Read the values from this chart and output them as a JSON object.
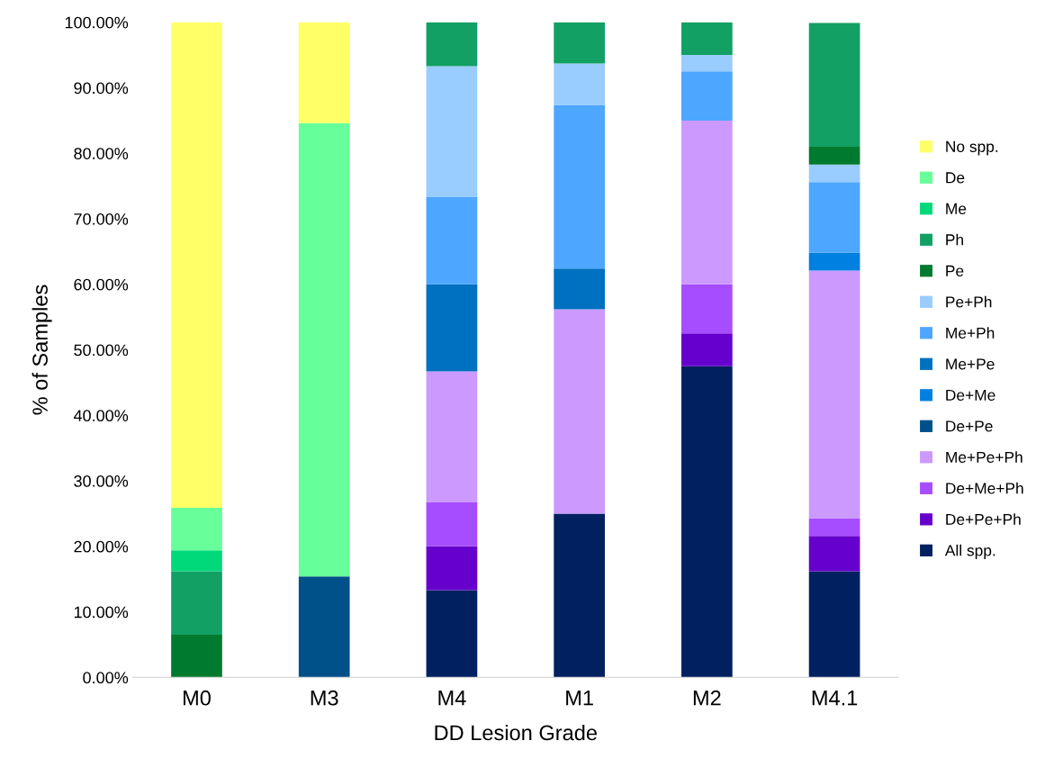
{
  "chart_data": {
    "type": "bar",
    "stacked": true,
    "xlabel": "DD Lesion Grade",
    "ylabel": "% of Samples",
    "categories": [
      "M0",
      "M3",
      "M4",
      "M1",
      "M2",
      "M4.1"
    ],
    "ylim": [
      0,
      100
    ],
    "yticks": [
      {
        "value": 0,
        "label": "0.00%"
      },
      {
        "value": 10,
        "label": "10.00%"
      },
      {
        "value": 20,
        "label": "20.00%"
      },
      {
        "value": 30,
        "label": "30.00%"
      },
      {
        "value": 40,
        "label": "40.00%"
      },
      {
        "value": 50,
        "label": "50.00%"
      },
      {
        "value": 60,
        "label": "60.00%"
      },
      {
        "value": 70,
        "label": "70.00%"
      },
      {
        "value": 80,
        "label": "80.00%"
      },
      {
        "value": 90,
        "label": "90.00%"
      },
      {
        "value": 100,
        "label": "100.00%"
      }
    ],
    "grid": false,
    "legend": "right",
    "series": [
      {
        "name": "All spp.",
        "color": "#002060",
        "values": [
          null,
          null,
          13.3,
          25,
          47.5,
          16.2
        ]
      },
      {
        "name": "De+Pe+Ph",
        "color": "#6600cc",
        "values": [
          null,
          null,
          6.7,
          null,
          5,
          5.4
        ]
      },
      {
        "name": "De+Me+Ph",
        "color": "#a64dff",
        "values": [
          null,
          null,
          6.7,
          null,
          7.5,
          2.7
        ]
      },
      {
        "name": "Me+Pe+Ph",
        "color": "#cc99ff",
        "values": [
          null,
          null,
          20,
          31.2,
          25,
          37.8
        ]
      },
      {
        "name": "De+Pe",
        "color": "#00508a",
        "values": [
          null,
          15.4,
          null,
          null,
          null,
          null
        ]
      },
      {
        "name": "De+Me",
        "color": "#0080e0",
        "values": [
          null,
          null,
          null,
          null,
          null,
          2.7
        ]
      },
      {
        "name": "Me+Pe",
        "color": "#0070c0",
        "values": [
          null,
          null,
          13.3,
          6.2,
          null,
          null
        ]
      },
      {
        "name": "Me+Ph",
        "color": "#4da6ff",
        "values": [
          null,
          null,
          13.3,
          25,
          7.5,
          10.8
        ]
      },
      {
        "name": "Pe+Ph",
        "color": "#99ccff",
        "values": [
          null,
          null,
          20,
          6.3,
          2.5,
          2.7
        ]
      },
      {
        "name": "Pe",
        "color": "#007a2e",
        "values": [
          6.5,
          null,
          null,
          null,
          null,
          2.7
        ]
      },
      {
        "name": "Ph",
        "color": "#12a064",
        "values": [
          9.7,
          null,
          6.7,
          6.3,
          5,
          18.9
        ]
      },
      {
        "name": "Me",
        "color": "#00d97a",
        "values": [
          3.2,
          null,
          null,
          null,
          null,
          null
        ]
      },
      {
        "name": "De",
        "color": "#66ff99",
        "values": [
          6.5,
          69.2,
          null,
          null,
          null,
          null
        ]
      },
      {
        "name": "No spp.",
        "color": "#ffff66",
        "values": [
          74.1,
          15.4,
          null,
          null,
          null,
          null
        ]
      }
    ]
  }
}
